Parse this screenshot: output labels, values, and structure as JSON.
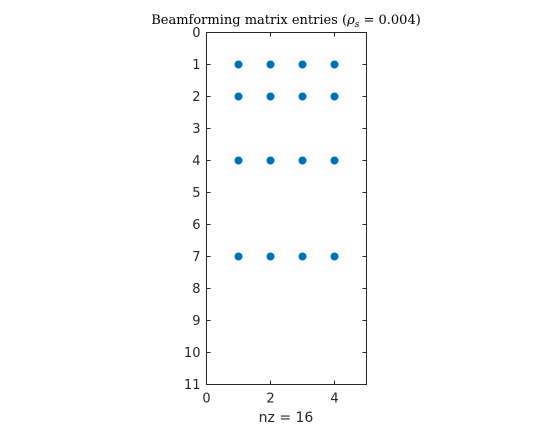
{
  "chart_data": {
    "type": "scatter",
    "title": "Beamforming matrix entries (ρs = 0.004)",
    "title_parts": {
      "prefix": "Beamforming matrix entries (",
      "rho": "ρ",
      "rho_sub": "s",
      "suffix": " = 0.004)"
    },
    "xlabel": "nz = 16",
    "ylabel": "",
    "xlim": [
      0,
      5
    ],
    "ylim": [
      0,
      11
    ],
    "y_reversed": true,
    "x_ticks": [
      0,
      2,
      4
    ],
    "y_ticks": [
      0,
      1,
      2,
      3,
      4,
      5,
      6,
      7,
      8,
      9,
      10,
      11
    ],
    "grid": false,
    "marker_color": "#0072BD",
    "points": [
      {
        "x": 1,
        "y": 1
      },
      {
        "x": 2,
        "y": 1
      },
      {
        "x": 3,
        "y": 1
      },
      {
        "x": 4,
        "y": 1
      },
      {
        "x": 1,
        "y": 2
      },
      {
        "x": 2,
        "y": 2
      },
      {
        "x": 3,
        "y": 2
      },
      {
        "x": 4,
        "y": 2
      },
      {
        "x": 1,
        "y": 4
      },
      {
        "x": 2,
        "y": 4
      },
      {
        "x": 3,
        "y": 4
      },
      {
        "x": 4,
        "y": 4
      },
      {
        "x": 1,
        "y": 7
      },
      {
        "x": 2,
        "y": 7
      },
      {
        "x": 3,
        "y": 7
      },
      {
        "x": 4,
        "y": 7
      }
    ]
  }
}
